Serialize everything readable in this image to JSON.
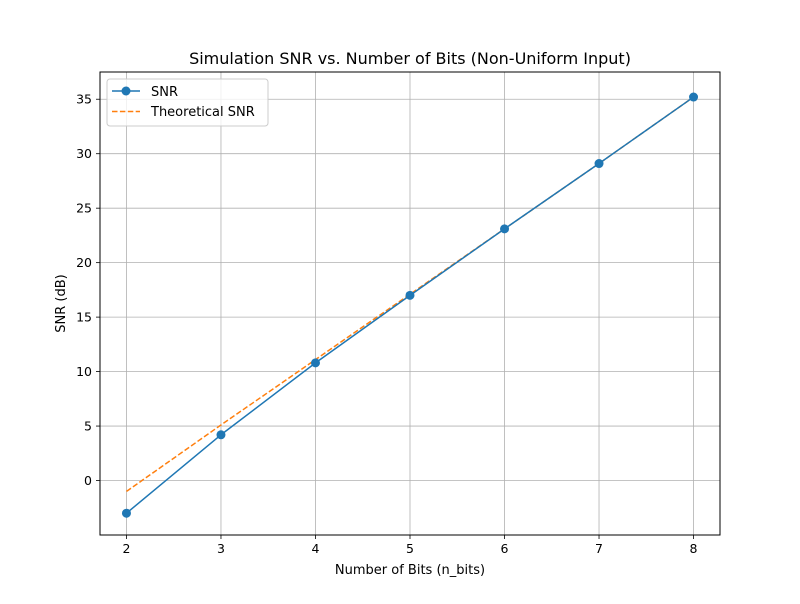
{
  "chart_data": {
    "type": "line",
    "title": "Simulation SNR vs. Number of Bits (Non-Uniform Input)",
    "xlabel": "Number of Bits (n_bits)",
    "ylabel": "SNR (dB)",
    "x": [
      2,
      3,
      4,
      5,
      6,
      7,
      8
    ],
    "x_ticks": [
      2,
      3,
      4,
      5,
      6,
      7,
      8
    ],
    "y_ticks": [
      0,
      5,
      10,
      15,
      20,
      25,
      30,
      35
    ],
    "xlim": [
      1.72,
      8.28
    ],
    "ylim": [
      -5.0,
      37.5
    ],
    "grid": true,
    "legend_position": "upper left",
    "series": [
      {
        "name": "SNR",
        "values": [
          -3.0,
          4.2,
          10.8,
          17.0,
          23.1,
          29.1,
          35.2
        ],
        "color": "#1f77b4",
        "line_style": "solid",
        "marker": "circle"
      },
      {
        "name": "Theoretical SNR",
        "values": [
          -1.0,
          5.1,
          11.1,
          17.1,
          23.1,
          29.1,
          35.2
        ],
        "color": "#ff7f0e",
        "line_style": "dashed",
        "marker": "none"
      }
    ]
  }
}
